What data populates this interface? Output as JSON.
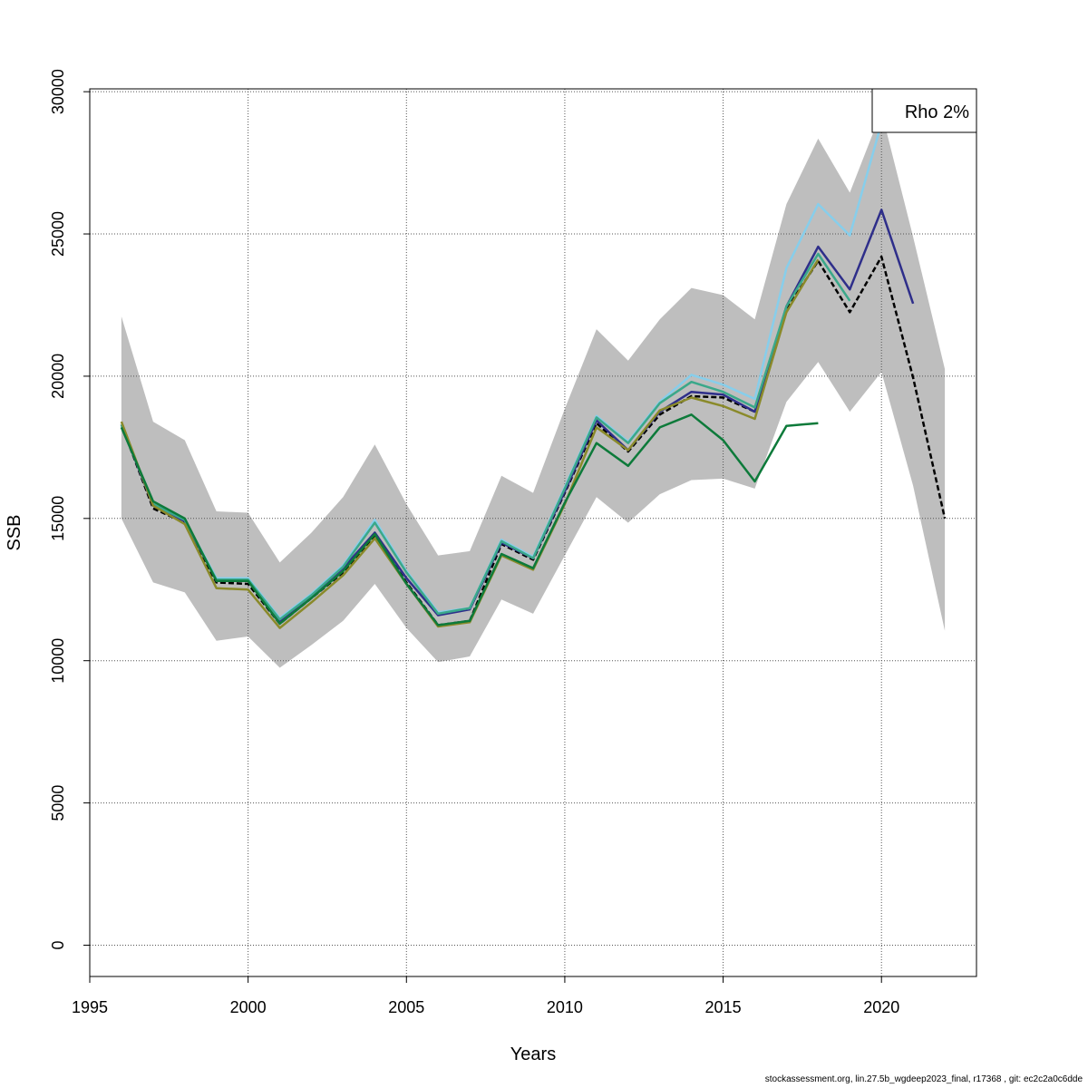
{
  "chart_data": {
    "type": "line",
    "xlabel": "Years",
    "ylabel": "SSB",
    "xlim": [
      1995,
      2023
    ],
    "ylim": [
      -1100,
      30100
    ],
    "x_ticks": [
      1995,
      2000,
      2005,
      2010,
      2015,
      2020
    ],
    "y_ticks": [
      0,
      5000,
      10000,
      15000,
      20000,
      25000,
      30000
    ],
    "grid": true,
    "legend_text": "Rho 2%",
    "legend_position": "top-right",
    "confidence_band": {
      "x": [
        1996,
        1997,
        1998,
        1999,
        2000,
        2001,
        2002,
        2003,
        2004,
        2005,
        2006,
        2007,
        2008,
        2009,
        2010,
        2011,
        2012,
        2013,
        2014,
        2015,
        2016,
        2017,
        2018,
        2019,
        2020,
        2021,
        2022
      ],
      "lower": [
        15000,
        12750,
        12400,
        10700,
        10850,
        9750,
        10550,
        11400,
        12700,
        11150,
        9950,
        10150,
        12150,
        11650,
        13700,
        15750,
        14850,
        15850,
        16350,
        16400,
        16050,
        19100,
        20500,
        18750,
        20150,
        16150,
        11050
      ],
      "upper": [
        22100,
        18400,
        17750,
        15250,
        15200,
        13450,
        14500,
        15750,
        17600,
        15500,
        13700,
        13850,
        16500,
        15900,
        18850,
        21650,
        20550,
        22000,
        23100,
        22850,
        22000,
        26050,
        28350,
        26450,
        29300,
        24900,
        20250
      ],
      "color": "#bebebe"
    },
    "series": [
      {
        "color": "#000000",
        "dashed": true,
        "x": [
          1996,
          1997,
          1998,
          1999,
          2000,
          2001,
          2002,
          2003,
          2004,
          2005,
          2006,
          2007,
          2008,
          2009,
          2010,
          2011,
          2012,
          2013,
          2014,
          2015,
          2016,
          2017,
          2018,
          2019,
          2020,
          2021,
          2022
        ],
        "values": [
          18300,
          15350,
          14850,
          12750,
          12700,
          11300,
          12200,
          13100,
          14400,
          12750,
          11250,
          11400,
          14100,
          13550,
          15900,
          18350,
          17350,
          18650,
          19300,
          19250,
          18750,
          22350,
          24050,
          22250,
          24200,
          19950,
          15000
        ]
      },
      {
        "color": "#2e2e8a",
        "x": [
          1996,
          1997,
          1998,
          1999,
          2000,
          2001,
          2002,
          2003,
          2004,
          2005,
          2006,
          2007,
          2008,
          2009,
          2010,
          2011,
          2012,
          2013,
          2014,
          2015,
          2016,
          2017,
          2018,
          2019,
          2020,
          2021
        ],
        "values": [
          18300,
          15450,
          14900,
          12850,
          12850,
          11400,
          12300,
          13250,
          14500,
          12900,
          11600,
          11800,
          14150,
          13600,
          15950,
          18450,
          17400,
          18750,
          19450,
          19350,
          18750,
          22450,
          24550,
          23050,
          25850,
          22550
        ]
      },
      {
        "color": "#87ceeb",
        "x": [
          1996,
          1997,
          1998,
          1999,
          2000,
          2001,
          2002,
          2003,
          2004,
          2005,
          2006,
          2007,
          2008,
          2009,
          2010,
          2011,
          2012,
          2013,
          2014,
          2015,
          2016,
          2017,
          2018,
          2019,
          2020
        ],
        "values": [
          18300,
          15500,
          14950,
          12900,
          12900,
          11500,
          12350,
          13350,
          14950,
          13150,
          11700,
          11850,
          14250,
          13650,
          16100,
          18600,
          17700,
          19100,
          20050,
          19700,
          19200,
          23800,
          26050,
          24950,
          28900
        ]
      },
      {
        "color": "#3aa88a",
        "x": [
          1996,
          1997,
          1998,
          1999,
          2000,
          2001,
          2002,
          2003,
          2004,
          2005,
          2006,
          2007,
          2008,
          2009,
          2010,
          2011,
          2012,
          2013,
          2014,
          2015,
          2016,
          2017,
          2018,
          2019
        ],
        "values": [
          18300,
          15500,
          14950,
          12850,
          12850,
          11450,
          12300,
          13300,
          14850,
          13100,
          11650,
          11850,
          14200,
          13600,
          16050,
          18550,
          17650,
          19050,
          19800,
          19450,
          18900,
          22450,
          24300,
          22650
        ]
      },
      {
        "color": "#8a8a2a",
        "x": [
          1996,
          1997,
          1998,
          1999,
          2000,
          2001,
          2002,
          2003,
          2004,
          2005,
          2006,
          2007,
          2008,
          2009,
          2010,
          2011,
          2012,
          2013,
          2014,
          2015,
          2016,
          2017,
          2018
        ],
        "values": [
          18400,
          15450,
          14800,
          12550,
          12500,
          11150,
          12050,
          13000,
          14300,
          12700,
          11200,
          11350,
          13700,
          13200,
          15500,
          18200,
          17400,
          18800,
          19250,
          18950,
          18500,
          22250,
          24100
        ]
      },
      {
        "color": "#0d7a3a",
        "x": [
          1996,
          1997,
          1998,
          1999,
          2000,
          2001,
          2002,
          2003,
          2004,
          2005,
          2006,
          2007,
          2008,
          2009,
          2010,
          2011,
          2012,
          2013,
          2014,
          2015,
          2016,
          2017,
          2018
        ],
        "values": [
          18200,
          15600,
          15000,
          12800,
          12800,
          11300,
          12200,
          13150,
          14450,
          12700,
          11250,
          11400,
          13750,
          13250,
          15550,
          17650,
          16850,
          18200,
          18650,
          17750,
          16300,
          18250,
          18350
        ]
      }
    ]
  },
  "footer": "stockassessment.org, lin.27.5b_wgdeep2023_final, r17368 , git: ec2c2a0c6dde"
}
